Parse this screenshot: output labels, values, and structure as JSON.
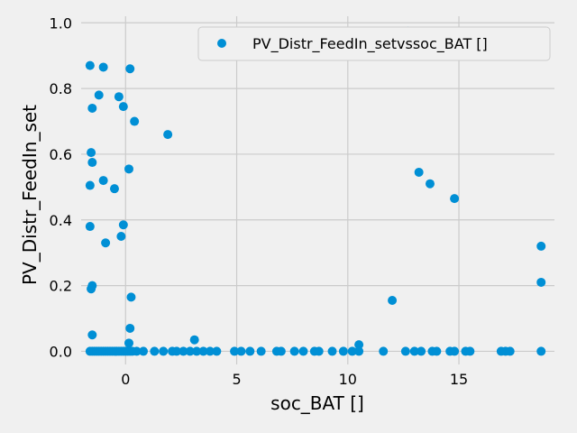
{
  "chart_data": {
    "type": "scatter",
    "xlabel": "soc_BAT []",
    "ylabel": "PV_Distr_FeedIn_set",
    "xlim": [
      -2.0,
      19.3
    ],
    "ylim": [
      -0.04,
      1.02
    ],
    "xticks": [
      0,
      5,
      10,
      15
    ],
    "yticks": [
      0.0,
      0.2,
      0.4,
      0.6,
      0.8,
      1.0
    ],
    "xtick_labels": [
      "0",
      "5",
      "10",
      "15"
    ],
    "ytick_labels": [
      "0.0",
      "0.2",
      "0.4",
      "0.6",
      "0.8",
      "1.0"
    ],
    "grid": true,
    "legend_position": "top-right",
    "colors": {
      "background": "#f0f0f0",
      "grid": "#cbcbcb",
      "marker": "#008fd5"
    },
    "series": [
      {
        "name": "PV_Distr_FeedIn_setvssoc_BAT []",
        "points": [
          [
            -1.6,
            0.87
          ],
          [
            -1.0,
            0.865
          ],
          [
            0.2,
            0.86
          ],
          [
            -1.2,
            0.78
          ],
          [
            -0.3,
            0.775
          ],
          [
            -1.5,
            0.74
          ],
          [
            -0.1,
            0.745
          ],
          [
            0.4,
            0.7
          ],
          [
            1.9,
            0.66
          ],
          [
            -1.55,
            0.605
          ],
          [
            -1.5,
            0.575
          ],
          [
            0.15,
            0.555
          ],
          [
            -1.0,
            0.52
          ],
          [
            -1.6,
            0.505
          ],
          [
            -0.5,
            0.495
          ],
          [
            -0.1,
            0.385
          ],
          [
            -1.6,
            0.38
          ],
          [
            -0.2,
            0.35
          ],
          [
            -0.9,
            0.33
          ],
          [
            -1.5,
            0.2
          ],
          [
            -1.55,
            0.19
          ],
          [
            0.25,
            0.165
          ],
          [
            0.2,
            0.07
          ],
          [
            -1.5,
            0.05
          ],
          [
            3.1,
            0.035
          ],
          [
            0.15,
            0.025
          ],
          [
            10.5,
            0.02
          ],
          [
            12.7,
            0.975
          ],
          [
            12.9,
            0.97
          ],
          [
            13.1,
            0.965
          ],
          [
            13.2,
            0.545
          ],
          [
            13.7,
            0.51
          ],
          [
            14.8,
            0.465
          ],
          [
            18.7,
            0.32
          ],
          [
            18.7,
            0.21
          ],
          [
            12.0,
            0.155
          ],
          [
            -1.6,
            0.0
          ],
          [
            -1.5,
            0.0
          ],
          [
            -1.4,
            0.0
          ],
          [
            -1.3,
            0.0
          ],
          [
            -1.2,
            0.0
          ],
          [
            -1.1,
            0.0
          ],
          [
            -1.0,
            0.0
          ],
          [
            -0.9,
            0.0
          ],
          [
            -0.8,
            0.0
          ],
          [
            -0.7,
            0.0
          ],
          [
            -0.6,
            0.0
          ],
          [
            -0.5,
            0.0
          ],
          [
            -0.4,
            0.0
          ],
          [
            -0.3,
            0.0
          ],
          [
            -0.2,
            0.0
          ],
          [
            -0.1,
            0.0
          ],
          [
            0.0,
            0.0
          ],
          [
            0.1,
            0.0
          ],
          [
            0.2,
            0.0
          ],
          [
            0.3,
            0.0
          ],
          [
            0.5,
            0.0
          ],
          [
            0.8,
            0.0
          ],
          [
            1.3,
            0.0
          ],
          [
            1.7,
            0.0
          ],
          [
            2.1,
            0.0
          ],
          [
            2.3,
            0.0
          ],
          [
            2.6,
            0.0
          ],
          [
            2.9,
            0.0
          ],
          [
            3.2,
            0.0
          ],
          [
            3.5,
            0.0
          ],
          [
            3.8,
            0.0
          ],
          [
            4.1,
            0.0
          ],
          [
            4.9,
            0.0
          ],
          [
            5.2,
            0.0
          ],
          [
            5.6,
            0.0
          ],
          [
            6.1,
            0.0
          ],
          [
            6.8,
            0.0
          ],
          [
            7.0,
            0.0
          ],
          [
            7.6,
            0.0
          ],
          [
            8.0,
            0.0
          ],
          [
            8.5,
            0.0
          ],
          [
            8.7,
            0.0
          ],
          [
            9.3,
            0.0
          ],
          [
            9.8,
            0.0
          ],
          [
            10.2,
            0.0
          ],
          [
            10.5,
            0.0
          ],
          [
            11.6,
            0.0
          ],
          [
            12.6,
            0.0
          ],
          [
            13.0,
            0.0
          ],
          [
            13.3,
            0.0
          ],
          [
            13.8,
            0.0
          ],
          [
            14.0,
            0.0
          ],
          [
            14.6,
            0.0
          ],
          [
            14.8,
            0.0
          ],
          [
            15.3,
            0.0
          ],
          [
            15.5,
            0.0
          ],
          [
            16.9,
            0.0
          ],
          [
            17.1,
            0.0
          ],
          [
            17.3,
            0.0
          ],
          [
            18.7,
            0.0
          ]
        ]
      }
    ]
  }
}
